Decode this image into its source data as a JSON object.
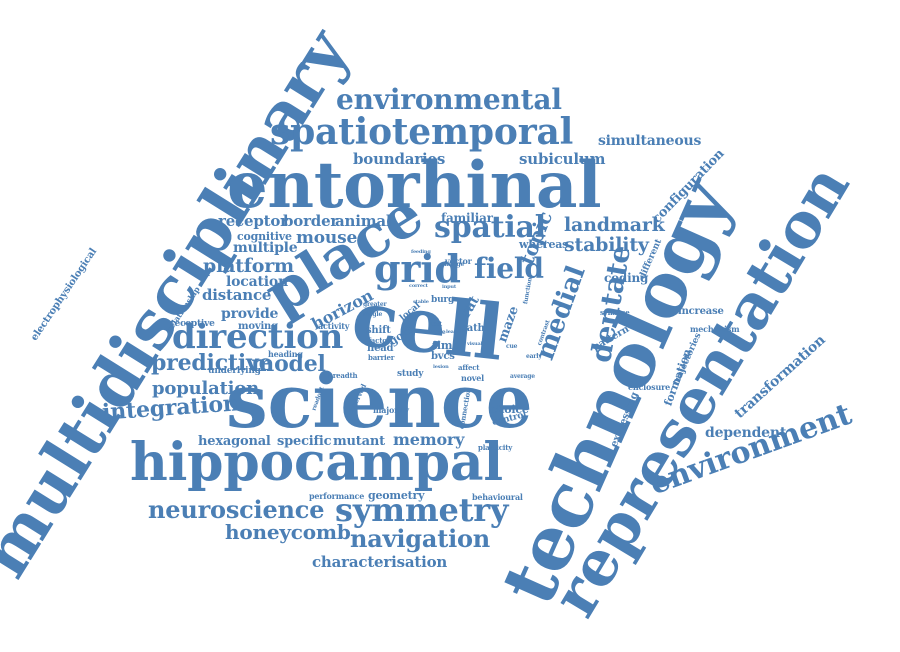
{
  "cloud": {
    "color": "#4B7FB5",
    "words": [
      "multidisciplinary",
      "technology",
      "representation",
      "science",
      "cell",
      "entorhinal",
      "hippocampal",
      "place",
      "spatiotemporal",
      "environmental",
      "environment",
      "grid",
      "spatial",
      "direction",
      "symmetry",
      "navigation",
      "neuroscience",
      "honeycomb",
      "characterisation",
      "model",
      "predictive",
      "population",
      "integration",
      "field",
      "dentate",
      "medial",
      "topic",
      "landmark",
      "stability",
      "boundaries",
      "subiculum",
      "simultaneous",
      "configuration",
      "receptor",
      "border",
      "animal",
      "familiar",
      "cognitive",
      "mouse",
      "multiple",
      "platform",
      "location",
      "distance",
      "provide",
      "horizon",
      "moving",
      "heading",
      "underlying",
      "hexagonal",
      "specific",
      "mutant",
      "memory",
      "performance",
      "geometry",
      "behavioural",
      "dependent",
      "transformation",
      "mechanism",
      "increase",
      "enclosure",
      "formation",
      "trajectories",
      "expressing",
      "pattern",
      "coding",
      "different",
      "electrophysiological",
      "relationship",
      "receptive",
      "maze",
      "goal",
      "head",
      "time",
      "bvcs",
      "shift",
      "study",
      "novel",
      "choice",
      "control",
      "connection",
      "plasticity",
      "majority",
      "observed",
      "breadth",
      "factor",
      "barrier",
      "activity",
      "vector",
      "whereas",
      "change",
      "rat",
      "path",
      "local",
      "burg",
      "single",
      "affect",
      "average",
      "contrast",
      "synapse",
      "function",
      "feeding",
      "greater",
      "correct",
      "input",
      "test",
      "more",
      "learn",
      "early",
      "readout",
      "lesion",
      "stable",
      "cue",
      "visual"
    ]
  }
}
